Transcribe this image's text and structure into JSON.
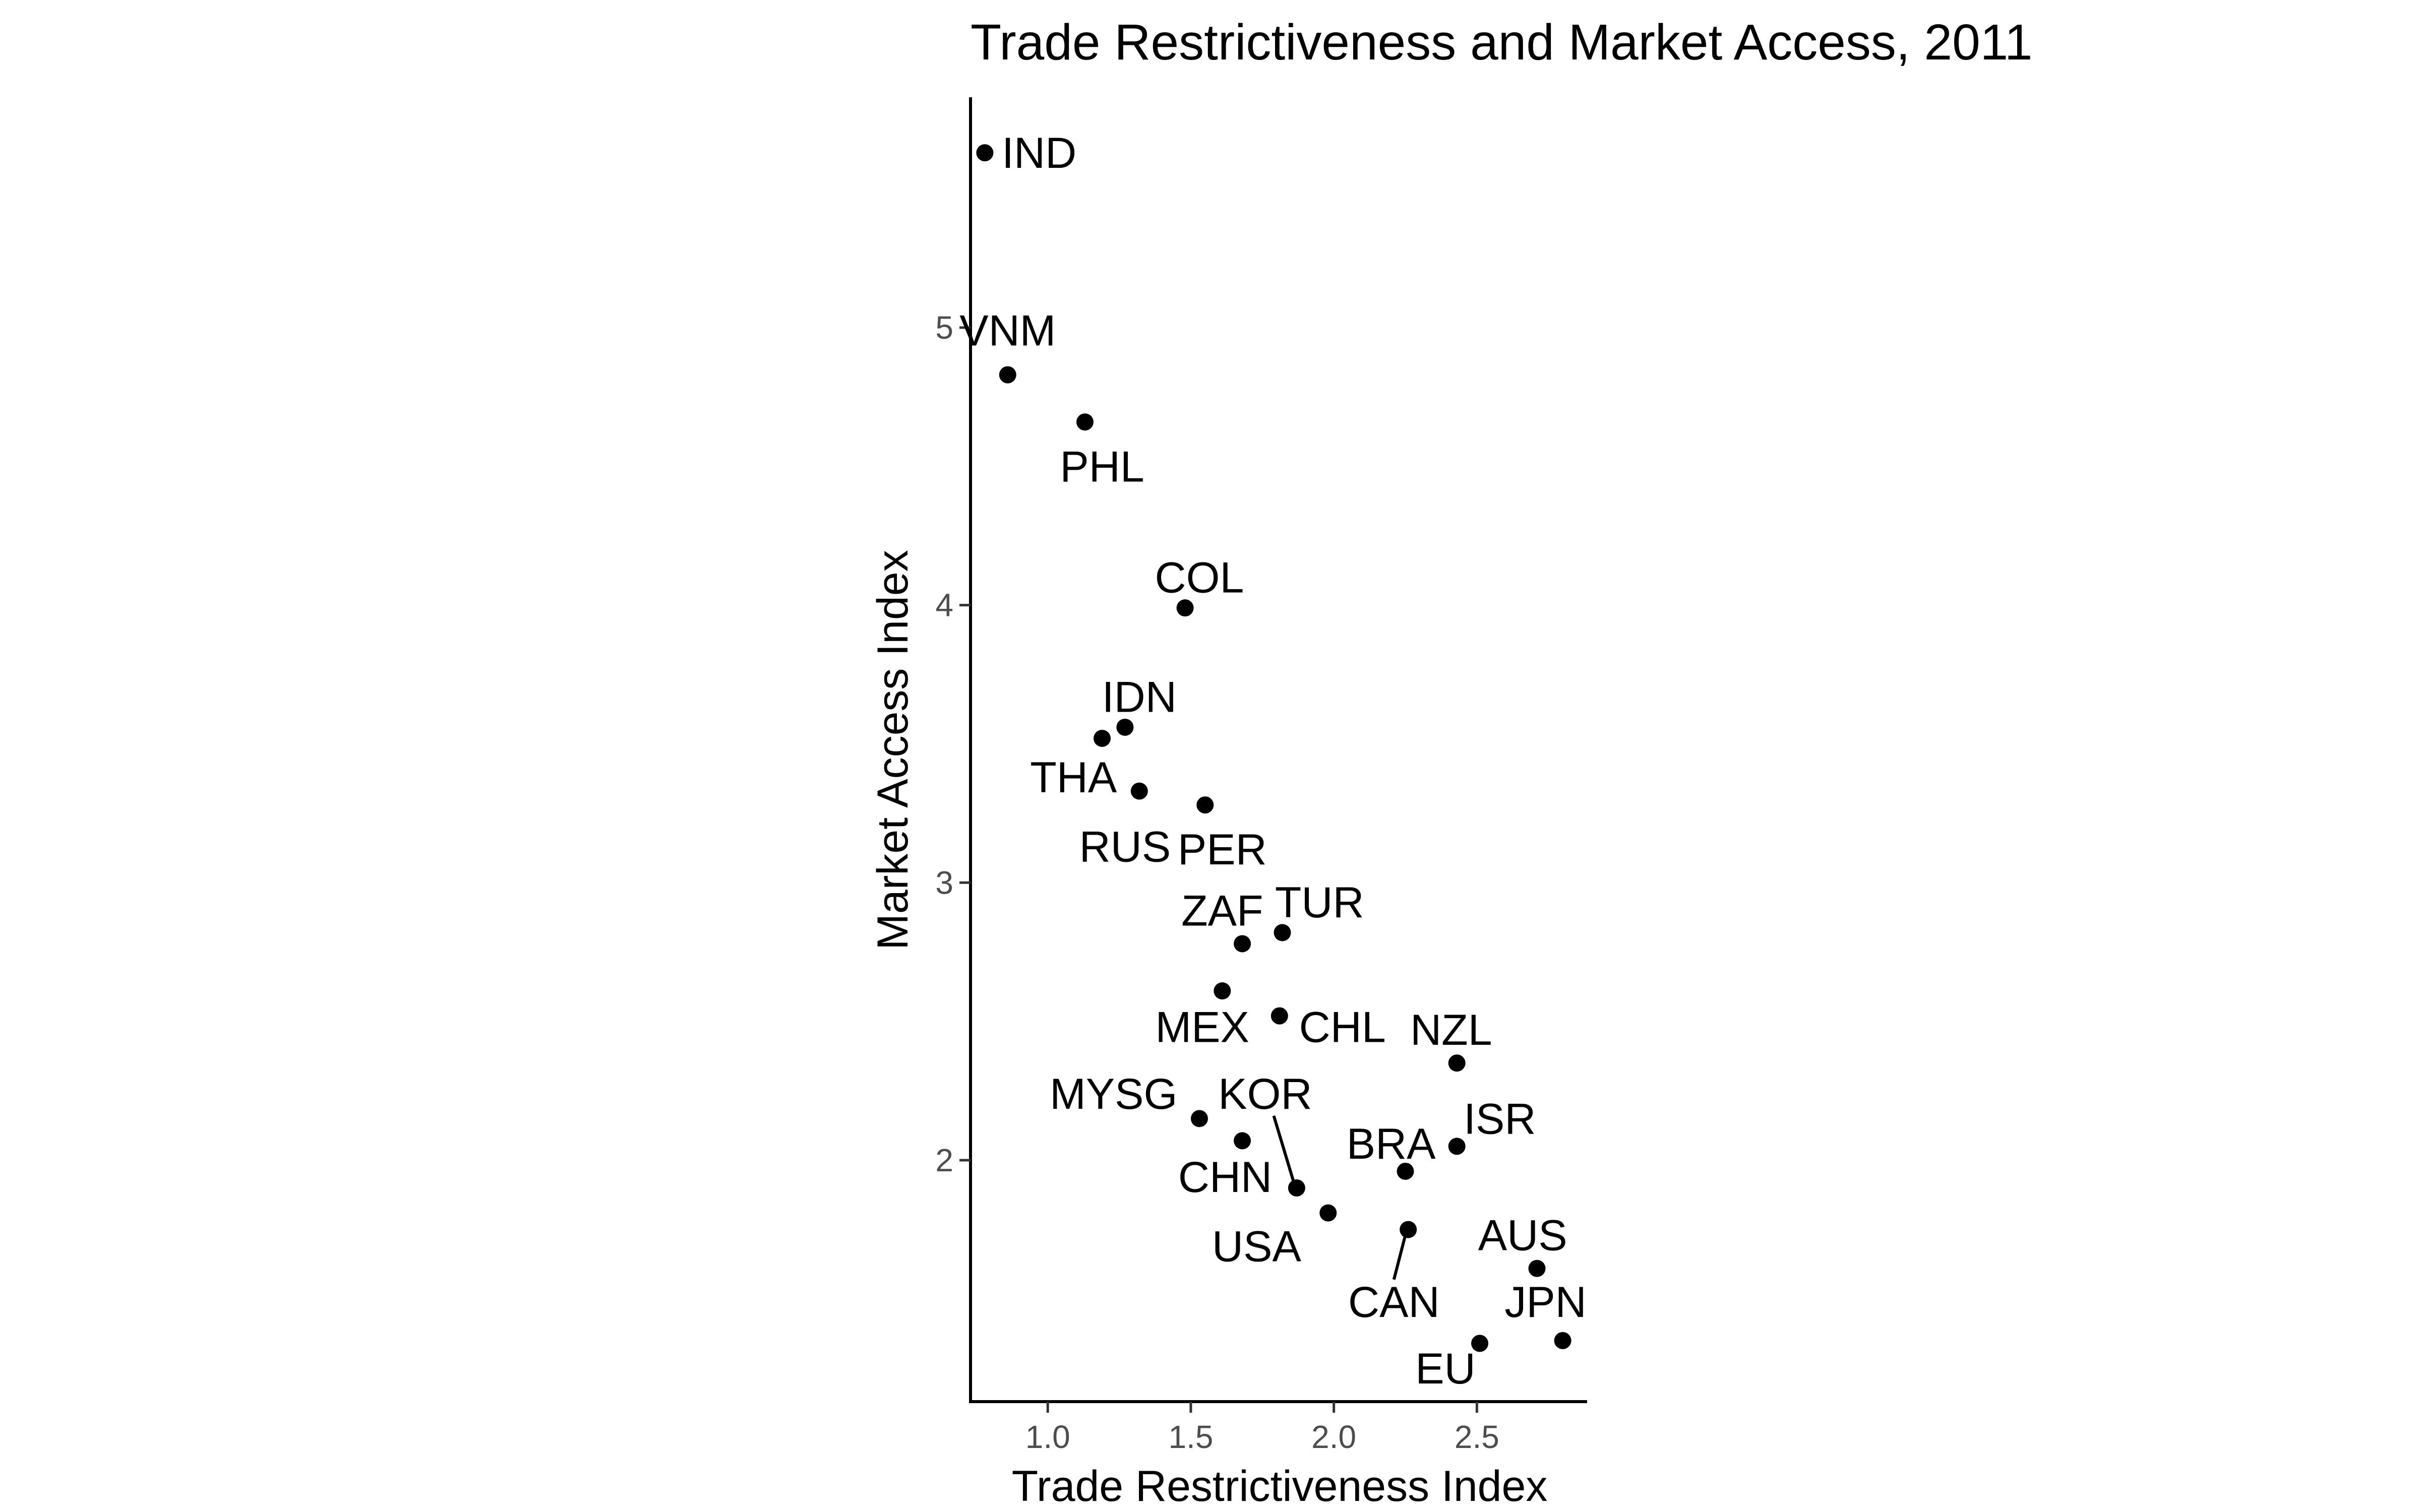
{
  "chart_data": {
    "type": "scatter",
    "title": "Trade Restrictiveness and Market Access, 2011",
    "xlabel": "Trade Restrictiveness Index",
    "ylabel": "Market Access Index",
    "xlim": [
      0.73,
      2.88
    ],
    "ylim": [
      1.13,
      5.83
    ],
    "x_ticks": [
      1.0,
      1.5,
      2.0,
      2.5
    ],
    "x_tick_labels": [
      "1.0",
      "1.5",
      "2.0",
      "2.5"
    ],
    "y_ticks": [
      2,
      3,
      4,
      5
    ],
    "y_tick_labels": [
      "2",
      "3",
      "4",
      "5"
    ],
    "grid": false,
    "legend": "none",
    "point_color": "#000000",
    "points": [
      {
        "label": "IND",
        "x": 0.78,
        "y": 5.63,
        "label_x": 0.97,
        "label_y": 5.63,
        "anchor": "middle"
      },
      {
        "label": "VNM",
        "x": 0.86,
        "y": 4.83,
        "label_x": 0.86,
        "label_y": 4.99,
        "anchor": "middle"
      },
      {
        "label": "PHL",
        "x": 1.13,
        "y": 4.66,
        "label_x": 1.19,
        "label_y": 4.5,
        "anchor": "middle"
      },
      {
        "label": "COL",
        "x": 1.48,
        "y": 3.99,
        "label_x": 1.53,
        "label_y": 4.1,
        "anchor": "middle"
      },
      {
        "label": "IDN",
        "x": 1.27,
        "y": 3.56,
        "label_x": 1.32,
        "label_y": 3.67,
        "anchor": "middle"
      },
      {
        "label": "THA",
        "x": 1.19,
        "y": 3.52,
        "label_x": 1.09,
        "label_y": 3.38,
        "anchor": "middle"
      },
      {
        "label": "RUS",
        "x": 1.32,
        "y": 3.33,
        "label_x": 1.27,
        "label_y": 3.13,
        "anchor": "middle"
      },
      {
        "label": "PER",
        "x": 1.55,
        "y": 3.28,
        "label_x": 1.61,
        "label_y": 3.12,
        "anchor": "middle"
      },
      {
        "label": "TUR",
        "x": 1.82,
        "y": 2.82,
        "label_x": 1.95,
        "label_y": 2.93,
        "anchor": "middle"
      },
      {
        "label": "ZAF",
        "x": 1.68,
        "y": 2.78,
        "label_x": 1.61,
        "label_y": 2.9,
        "anchor": "middle"
      },
      {
        "label": "MEX",
        "x": 1.61,
        "y": 2.61,
        "label_x": 1.54,
        "label_y": 2.48,
        "anchor": "middle"
      },
      {
        "label": "CHL",
        "x": 1.81,
        "y": 2.52,
        "label_x": 2.03,
        "label_y": 2.48,
        "anchor": "middle"
      },
      {
        "label": "NZL",
        "x": 2.43,
        "y": 2.35,
        "label_x": 2.41,
        "label_y": 2.47,
        "anchor": "middle"
      },
      {
        "label": "MYSG",
        "x": 1.53,
        "y": 2.15,
        "label_x": 1.23,
        "label_y": 2.24,
        "anchor": "middle"
      },
      {
        "label": "KOR",
        "x": 1.87,
        "y": 1.9,
        "label_x": 1.76,
        "label_y": 2.24,
        "anchor": "middle",
        "leader": [
          1.79,
          2.16,
          1.86,
          1.92
        ]
      },
      {
        "label": "CHN",
        "x": 1.68,
        "y": 2.07,
        "label_x": 1.62,
        "label_y": 1.94,
        "anchor": "middle"
      },
      {
        "label": "ISR",
        "x": 2.43,
        "y": 2.05,
        "label_x": 2.58,
        "label_y": 2.15,
        "anchor": "middle"
      },
      {
        "label": "BRA",
        "x": 2.25,
        "y": 1.96,
        "label_x": 2.2,
        "label_y": 2.06,
        "anchor": "middle"
      },
      {
        "label": "USA",
        "x": 1.98,
        "y": 1.81,
        "label_x": 1.73,
        "label_y": 1.69,
        "anchor": "middle"
      },
      {
        "label": "CAN",
        "x": 2.26,
        "y": 1.75,
        "label_x": 2.21,
        "label_y": 1.49,
        "anchor": "middle",
        "leader": [
          2.21,
          1.57,
          2.25,
          1.73
        ]
      },
      {
        "label": "AUS",
        "x": 2.71,
        "y": 1.61,
        "label_x": 2.66,
        "label_y": 1.73,
        "anchor": "middle"
      },
      {
        "label": "JPN",
        "x": 2.8,
        "y": 1.35,
        "label_x": 2.74,
        "label_y": 1.49,
        "anchor": "middle"
      },
      {
        "label": "EU",
        "x": 2.51,
        "y": 1.34,
        "label_x": 2.39,
        "label_y": 1.25,
        "anchor": "middle"
      }
    ]
  }
}
